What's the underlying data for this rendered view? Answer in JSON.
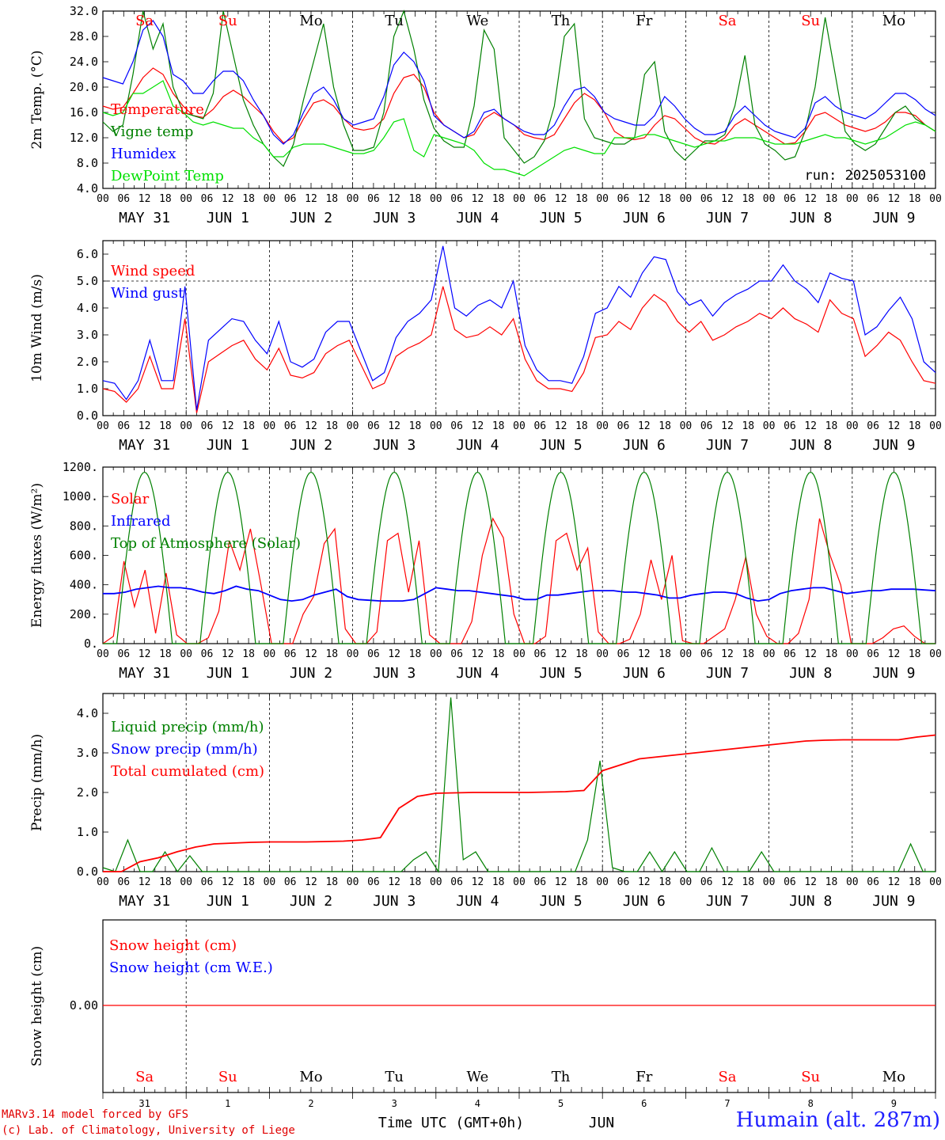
{
  "run_label": "run: 2025053100",
  "time_axis_label": "Time UTC (GMT+0h)",
  "month_label": "JUN",
  "credit_line1": "MARv3.14 model forced by GFS",
  "credit_line2": "(c) Lab. of Climatology, University of Liege",
  "station": "Humain (alt. 287m)",
  "colors": {
    "red": "#ff0000",
    "green": "#008000",
    "blue": "#0000ff",
    "lightgreen": "#00e000",
    "weekend": "#ff0000",
    "weekday": "#000000",
    "station": "#2020ff"
  },
  "day_names": [
    "Sa",
    "Su",
    "Mo",
    "Tu",
    "We",
    "Th",
    "Fr",
    "Sa",
    "Su",
    "Mo"
  ],
  "weekend_flags": [
    true,
    true,
    false,
    false,
    false,
    false,
    false,
    true,
    true,
    false
  ],
  "date_labels": [
    "MAY 31",
    "JUN  1",
    "JUN  2",
    "JUN  3",
    "JUN  4",
    "JUN  5",
    "JUN  6",
    "JUN  7",
    "JUN  8",
    "JUN  9"
  ],
  "bottom_day_numbers": [
    "31",
    "1",
    "2",
    "3",
    "4",
    "5",
    "6",
    "7",
    "8",
    "9"
  ],
  "hour_labels": [
    "00",
    "06",
    "12",
    "18"
  ],
  "final_hour_label": "00",
  "chart_data": [
    {
      "id": "temp",
      "type": "line",
      "ylabel": "2m Temp. (°C)",
      "ylim": [
        4,
        32
      ],
      "yticks": [
        "4.0",
        "8.0",
        "12.0",
        "16.0",
        "20.0",
        "24.0",
        "28.0",
        "32.0"
      ],
      "x": "hours from 2025-05-31 00 UTC, 3-hourly",
      "series": [
        {
          "name": "Temperature",
          "color": "#ff0000",
          "values": [
            17,
            16.5,
            16.8,
            19,
            21.5,
            23,
            22,
            19,
            17,
            15.5,
            15.2,
            16.5,
            18.5,
            19.5,
            18.5,
            17,
            15.5,
            13,
            11.2,
            12,
            15,
            17.5,
            18,
            17,
            15,
            13.5,
            13.2,
            13.5,
            15,
            19,
            21.5,
            22,
            20,
            16,
            14,
            13,
            12,
            12.5,
            15,
            16,
            15,
            14,
            12.5,
            12,
            11.7,
            12.5,
            15,
            17.5,
            19,
            18,
            16,
            13,
            12,
            11.7,
            12,
            14,
            15.5,
            15,
            13.5,
            12,
            11.2,
            11,
            12,
            14,
            15,
            14,
            13,
            12,
            11,
            11.2,
            13,
            15.5,
            16,
            15,
            14,
            13.5,
            13,
            13.5,
            14.5,
            16,
            16,
            15.5,
            14,
            13
          ]
        },
        {
          "name": "Vigne temp",
          "color": "#008000",
          "values": [
            14.5,
            13,
            14,
            22,
            32,
            26,
            30,
            20,
            16,
            15.5,
            15,
            19,
            32,
            25,
            18,
            14,
            11,
            9,
            7.5,
            11,
            18,
            24,
            30,
            20,
            14,
            10,
            10,
            10.5,
            16,
            28,
            32,
            26,
            18,
            13.5,
            11.5,
            10.5,
            10.5,
            17,
            29,
            26,
            12,
            10,
            8,
            9,
            11.5,
            17,
            28,
            30,
            15,
            12,
            11.5,
            11,
            11,
            12,
            22,
            24,
            13,
            10,
            8.5,
            10,
            11.5,
            11.5,
            12.5,
            17,
            25,
            14,
            11,
            10,
            8.5,
            9,
            13,
            20,
            31,
            22,
            13,
            11,
            10,
            11,
            13.5,
            16,
            17,
            15,
            14,
            13
          ]
        },
        {
          "name": "Humidex",
          "color": "#0000ff",
          "values": [
            21.5,
            21,
            20.5,
            24,
            29,
            30.5,
            28,
            22,
            21,
            19,
            19,
            21,
            22.5,
            22.5,
            21,
            18,
            15.5,
            12.5,
            11,
            12.5,
            16,
            19,
            20,
            18,
            15,
            14,
            14.5,
            15,
            18.5,
            23.5,
            25.5,
            24,
            21,
            15.5,
            14,
            13,
            12,
            13,
            16,
            16.5,
            15,
            14,
            13,
            12.5,
            12.5,
            14,
            17,
            19.5,
            20,
            18.5,
            16,
            15,
            14.5,
            14,
            14,
            15.5,
            18.5,
            17,
            15,
            13.5,
            12.5,
            12.5,
            13,
            15.5,
            17,
            15.5,
            14,
            13,
            12.5,
            12,
            13.5,
            17.5,
            18.5,
            17,
            16,
            15.5,
            15,
            16,
            17.5,
            19,
            19,
            18,
            16.5,
            15.5
          ]
        },
        {
          "name": "DewPoint Temp",
          "color": "#00e000",
          "values": [
            16,
            15.5,
            16,
            19,
            19,
            20,
            21,
            17,
            16,
            14.5,
            14,
            14.5,
            14,
            13.5,
            13.5,
            12,
            11,
            9,
            9,
            10.5,
            11,
            11,
            11,
            10.5,
            10,
            9.5,
            9.5,
            10,
            12,
            14.5,
            15,
            10,
            9,
            12.5,
            12,
            11.5,
            11,
            10,
            8,
            7,
            7,
            6.5,
            6,
            7,
            8,
            9,
            10,
            10.5,
            10,
            9.5,
            9.5,
            12,
            12,
            12,
            12.5,
            12.5,
            12,
            11.5,
            11,
            10.5,
            11,
            11.5,
            11.5,
            12,
            12,
            12,
            11.5,
            11,
            11,
            11,
            11.5,
            12,
            12.5,
            12,
            12,
            11.5,
            11,
            11.5,
            12,
            13,
            14,
            14.5,
            14,
            13
          ]
        }
      ]
    },
    {
      "id": "wind",
      "type": "line",
      "ylabel": "10m Wind (m/s)",
      "ylim": [
        0,
        6.5
      ],
      "yticks": [
        "0.0",
        "1.0",
        "2.0",
        "3.0",
        "4.0",
        "5.0",
        "6.0"
      ],
      "reference_line": 5,
      "series": [
        {
          "name": "Wind speed",
          "color": "#ff0000",
          "values": [
            1,
            0.9,
            0.5,
            1,
            2.2,
            1,
            1,
            3.6,
            0.1,
            2,
            2.3,
            2.6,
            2.8,
            2.1,
            1.7,
            2.5,
            1.5,
            1.4,
            1.6,
            2.3,
            2.6,
            2.8,
            1.9,
            1,
            1.2,
            2.2,
            2.5,
            2.7,
            3,
            4.8,
            3.2,
            2.9,
            3,
            3.3,
            3,
            3.6,
            2.1,
            1.3,
            1,
            1,
            0.9,
            1.6,
            2.9,
            3,
            3.5,
            3.2,
            4,
            4.5,
            4.2,
            3.5,
            3.1,
            3.5,
            2.8,
            3,
            3.3,
            3.5,
            3.8,
            3.6,
            4,
            3.6,
            3.4,
            3.1,
            4.3,
            3.8,
            3.6,
            2.2,
            2.6,
            3.1,
            2.8,
            2,
            1.3,
            1.2
          ]
        },
        {
          "name": "Wind gust",
          "color": "#0000ff",
          "values": [
            1.3,
            1.2,
            0.6,
            1.3,
            2.8,
            1.3,
            1.3,
            4.8,
            0.2,
            2.8,
            3.2,
            3.6,
            3.5,
            2.8,
            2.3,
            3.5,
            2,
            1.8,
            2.1,
            3.1,
            3.5,
            3.5,
            2.4,
            1.3,
            1.6,
            2.9,
            3.5,
            3.8,
            4.3,
            6.3,
            4,
            3.7,
            4.1,
            4.3,
            4,
            5,
            2.6,
            1.7,
            1.3,
            1.3,
            1.2,
            2.2,
            3.8,
            4,
            4.8,
            4.4,
            5.3,
            5.9,
            5.8,
            4.6,
            4.1,
            4.3,
            3.7,
            4.2,
            4.5,
            4.7,
            5,
            5,
            5.6,
            5,
            4.7,
            4.2,
            5.3,
            5.1,
            5,
            3,
            3.3,
            3.9,
            4.4,
            3.6,
            2,
            1.6
          ]
        }
      ]
    },
    {
      "id": "energy",
      "type": "line",
      "ylabel": "Energy fluxes (W/m²)",
      "ylim": [
        0,
        1200
      ],
      "yticks": [
        "0.",
        "200.",
        "400.",
        "600.",
        "800.",
        "1000.",
        "1200."
      ],
      "series": [
        {
          "name": "Solar",
          "color": "#ff0000",
          "values": [
            0,
            50,
            560,
            250,
            500,
            70,
            480,
            60,
            0,
            0,
            40,
            220,
            700,
            500,
            780,
            400,
            0,
            0,
            0,
            200,
            320,
            680,
            780,
            100,
            0,
            0,
            80,
            700,
            750,
            350,
            700,
            60,
            0,
            0,
            0,
            150,
            600,
            850,
            720,
            200,
            0,
            0,
            50,
            700,
            750,
            500,
            650,
            80,
            0,
            0,
            30,
            200,
            570,
            300,
            600,
            20,
            0,
            0,
            50,
            100,
            300,
            590,
            200,
            50,
            0,
            0,
            70,
            300,
            850,
            600,
            400,
            0,
            0,
            0,
            40,
            100,
            120,
            50,
            0,
            0
          ]
        },
        {
          "name": "Infrared",
          "color": "#0000ff",
          "values": [
            340,
            340,
            350,
            370,
            380,
            390,
            380,
            380,
            370,
            350,
            340,
            360,
            390,
            370,
            360,
            330,
            300,
            290,
            300,
            330,
            350,
            370,
            320,
            300,
            295,
            290,
            290,
            290,
            300,
            340,
            380,
            370,
            360,
            360,
            350,
            340,
            330,
            320,
            300,
            300,
            330,
            330,
            340,
            350,
            360,
            360,
            360,
            350,
            350,
            340,
            330,
            310,
            310,
            330,
            340,
            350,
            350,
            340,
            310,
            290,
            300,
            340,
            360,
            370,
            380,
            380,
            360,
            340,
            350,
            360,
            360,
            370,
            370,
            370,
            365,
            360
          ]
        },
        {
          "name": "Top of Atmosphere (Solar)",
          "color": "#008000",
          "values": [
            0,
            1165,
            0,
            1165,
            0,
            1165,
            0,
            1165,
            0,
            1165,
            0,
            1165,
            0,
            1165,
            0,
            1165,
            0,
            1165,
            0,
            1165
          ]
        }
      ]
    },
    {
      "id": "precip",
      "type": "line",
      "ylabel": "Precip (mm/h)",
      "ylim": [
        0,
        4.5
      ],
      "yticks": [
        "0.0",
        "1.0",
        "2.0",
        "3.0",
        "4.0"
      ],
      "series": [
        {
          "name": "Liquid precip (mm/h)",
          "color": "#008000",
          "values": [
            0.1,
            0,
            0.8,
            0,
            0,
            0.5,
            0,
            0.4,
            0,
            0,
            0,
            0,
            0,
            0,
            0,
            0,
            0,
            0,
            0,
            0,
            0,
            0,
            0,
            0,
            0,
            0.3,
            0.5,
            0,
            4.4,
            0.3,
            0.5,
            0,
            0,
            0,
            0,
            0,
            0,
            0,
            0,
            0.8,
            2.8,
            0.1,
            0,
            0,
            0.5,
            0,
            0.5,
            0,
            0,
            0.6,
            0,
            0,
            0,
            0.5,
            0,
            0,
            0,
            0,
            0,
            0,
            0,
            0,
            0,
            0,
            0,
            0.7,
            0,
            0
          ]
        },
        {
          "name": "Snow precip (mm/h)",
          "color": "#0000ff",
          "values": []
        },
        {
          "name": "Total cumulated (cm)",
          "color": "#ff0000",
          "values": [
            0,
            0,
            0.25,
            0.35,
            0.5,
            0.62,
            0.7,
            0.72,
            0.74,
            0.75,
            0.75,
            0.75,
            0.76,
            0.77,
            0.8,
            0.86,
            1.6,
            1.9,
            1.98,
            1.99,
            2,
            2,
            2,
            2,
            2.01,
            2.02,
            2.05,
            2.55,
            2.7,
            2.85,
            2.9,
            2.95,
            3,
            3.05,
            3.1,
            3.15,
            3.2,
            3.25,
            3.3,
            3.32,
            3.33,
            3.33,
            3.33,
            3.33,
            3.4,
            3.45
          ]
        }
      ]
    },
    {
      "id": "snow",
      "type": "line",
      "ylabel": "Snow height (cm)",
      "yticks": [
        "0.00"
      ],
      "series": [
        {
          "name": "Snow height (cm)",
          "color": "#ff0000",
          "values": [
            0,
            0
          ]
        },
        {
          "name": "Snow height (cm W.E.)",
          "color": "#0000ff",
          "values": []
        }
      ]
    }
  ]
}
